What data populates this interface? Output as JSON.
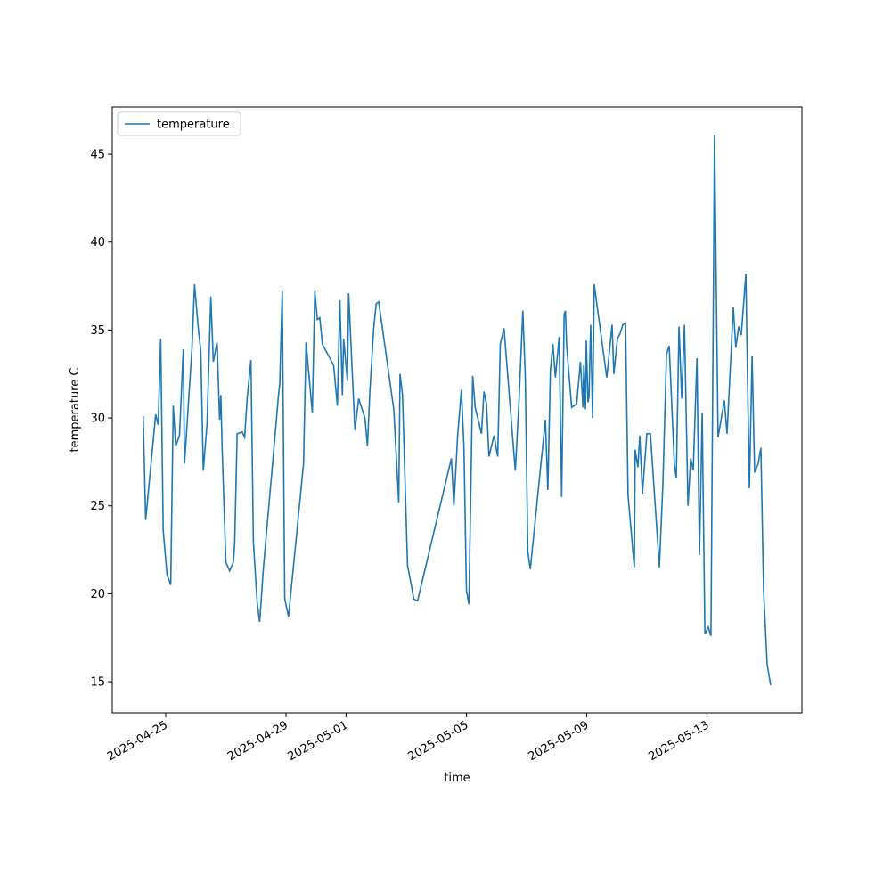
{
  "chart_data": {
    "type": "line",
    "xlabel": "time",
    "ylabel": "temperature C",
    "legend": "upper left",
    "xlim": [
      "2025-04-23T05:20",
      "2025-05-16T03:45"
    ],
    "xticks": [
      "2025-04-25",
      "2025-04-29",
      "2025-05-01",
      "2025-05-05",
      "2025-05-09",
      "2025-05-13"
    ],
    "ylim": [
      13.23,
      47.69
    ],
    "yticks": [
      15,
      20,
      25,
      30,
      35,
      40,
      45
    ],
    "x": [
      "2025-04-24T06:00",
      "2025-04-24T08:00",
      "2025-04-24T16:00",
      "2025-04-24T18:00",
      "2025-04-24T20:00",
      "2025-04-24T22:00",
      "2025-04-25T01:00",
      "2025-04-25T04:00",
      "2025-04-25T06:00",
      "2025-04-25T08:00",
      "2025-04-25T11:00",
      "2025-04-25T14:00",
      "2025-04-25T15:00",
      "2025-04-25T21:00",
      "2025-04-25T23:00",
      "2025-04-26T02:00",
      "2025-04-26T04:00",
      "2025-04-26T06:00",
      "2025-04-26T09:00",
      "2025-04-26T12:00",
      "2025-04-26T14:00",
      "2025-04-26T17:00",
      "2025-04-26T19:00",
      "2025-04-26T20:00",
      "2025-04-26T21:00",
      "2025-04-27T00:00",
      "2025-04-27T03:00",
      "2025-04-27T06:00",
      "2025-04-27T07:00",
      "2025-04-27T09:00",
      "2025-04-27T13:00",
      "2025-04-27T15:00",
      "2025-04-27T17:00",
      "2025-04-27T20:00",
      "2025-04-27T22:00",
      "2025-04-28T01:00",
      "2025-04-28T03:00",
      "2025-04-28T06:00",
      "2025-04-28T15:00",
      "2025-04-28T18:00",
      "2025-04-28T19:00",
      "2025-04-28T21:00",
      "2025-04-28T23:00",
      "2025-04-29T02:00",
      "2025-04-29T14:00",
      "2025-04-29T16:00",
      "2025-04-29T18:00",
      "2025-04-29T21:00",
      "2025-04-29T23:00",
      "2025-04-30T01:00",
      "2025-04-30T03:00",
      "2025-04-30T05:00",
      "2025-04-30T14:00",
      "2025-04-30T17:00",
      "2025-04-30T19:00",
      "2025-04-30T21:00",
      "2025-04-30T22:00",
      "2025-05-01T01:00",
      "2025-05-01T02:00",
      "2025-05-01T05:00",
      "2025-05-01T07:00",
      "2025-05-01T10:00",
      "2025-05-01T15:00",
      "2025-05-01T17:00",
      "2025-05-01T19:00",
      "2025-05-01T22:00",
      "2025-05-02T00:00",
      "2025-05-02T02:00",
      "2025-05-02T14:00",
      "2025-05-02T18:00",
      "2025-05-02T19:00",
      "2025-05-02T21:00",
      "2025-05-03T01:00",
      "2025-05-03T04:00",
      "2025-05-03T06:00",
      "2025-05-03T09:00",
      "2025-05-04T12:00",
      "2025-05-04T14:00",
      "2025-05-04T17:00",
      "2025-05-04T20:00",
      "2025-05-04T22:00",
      "2025-05-05T00:00",
      "2025-05-05T02:00",
      "2025-05-05T05:00",
      "2025-05-05T07:00",
      "2025-05-05T12:00",
      "2025-05-05T14:00",
      "2025-05-05T16:00",
      "2025-05-05T18:00",
      "2025-05-05T22:00",
      "2025-05-06T01:00",
      "2025-05-06T03:00",
      "2025-05-06T06:00",
      "2025-05-06T15:00",
      "2025-05-06T18:00",
      "2025-05-06T21:00",
      "2025-05-06T23:00",
      "2025-05-07T01:00",
      "2025-05-07T03:00",
      "2025-05-07T15:00",
      "2025-05-07T17:00",
      "2025-05-07T19:00",
      "2025-05-07T21:00",
      "2025-05-07T23:00",
      "2025-05-08T02:00",
      "2025-05-08T04:00",
      "2025-05-08T06:00",
      "2025-05-08T07:00",
      "2025-05-08T08:00",
      "2025-05-08T12:00",
      "2025-05-08T16:00",
      "2025-05-08T19:00",
      "2025-05-08T21:00",
      "2025-05-08T21:40",
      "2025-05-08T23:00",
      "2025-05-08T23:40",
      "2025-05-09T01:00",
      "2025-05-09T01:50",
      "2025-05-09T03:10",
      "2025-05-09T04:40",
      "2025-05-09T06:00",
      "2025-05-09T16:00",
      "2025-05-09T20:15",
      "2025-05-09T21:40",
      "2025-05-10T00:30",
      "2025-05-10T02:40",
      "2025-05-10T04:50",
      "2025-05-10T07:00",
      "2025-05-10T09:00",
      "2025-05-10T14:00",
      "2025-05-10T14:40",
      "2025-05-10T16:50",
      "2025-05-10T18:20",
      "2025-05-10T20:30",
      "2025-05-11T00:00",
      "2025-05-11T02:50",
      "2025-05-11T10:00",
      "2025-05-11T12:50",
      "2025-05-11T15:40",
      "2025-05-11T17:50",
      "2025-05-11T22:00",
      "2025-05-11T23:30",
      "2025-05-12T01:40",
      "2025-05-12T03:50",
      "2025-05-12T06:00",
      "2025-05-12T08:50",
      "2025-05-12T11:00",
      "2025-05-12T13:00",
      "2025-05-12T16:00",
      "2025-05-12T18:00",
      "2025-05-12T20:10",
      "2025-05-12T22:20",
      "2025-05-13T01:00",
      "2025-05-13T03:10",
      "2025-05-13T06:00",
      "2025-05-13T08:50",
      "2025-05-13T13:50",
      "2025-05-13T16:00",
      "2025-05-13T21:00",
      "2025-05-13T23:00",
      "2025-05-14T01:15",
      "2025-05-14T03:20",
      "2025-05-14T07:00",
      "2025-05-14T09:50",
      "2025-05-14T12:00",
      "2025-05-14T14:00",
      "2025-05-14T16:50",
      "2025-05-14T19:00",
      "2025-05-14T21:10",
      "2025-05-15T00:00",
      "2025-05-15T02:50"
    ],
    "series": [
      {
        "name": "temperature",
        "color": "#1f77b4",
        "values": [
          30.1,
          24.2,
          30.2,
          29.6,
          34.5,
          23.6,
          21.1,
          20.5,
          30.7,
          28.4,
          29.0,
          33.9,
          27.4,
          34.0,
          37.6,
          35.1,
          33.8,
          27.0,
          29.7,
          36.9,
          33.2,
          34.3,
          29.9,
          31.3,
          28.3,
          21.8,
          21.3,
          21.8,
          22.8,
          29.1,
          29.2,
          28.9,
          31.1,
          33.3,
          22.9,
          19.5,
          18.4,
          21.5,
          28.8,
          31.3,
          31.9,
          37.2,
          19.7,
          18.7,
          27.4,
          34.3,
          32.7,
          30.3,
          37.2,
          35.6,
          35.7,
          34.2,
          33.0,
          30.7,
          36.7,
          31.3,
          34.5,
          32.1,
          37.1,
          32.4,
          29.3,
          31.1,
          30.0,
          28.4,
          31.6,
          35.1,
          36.5,
          36.6,
          30.5,
          25.2,
          32.5,
          31.3,
          21.6,
          20.5,
          19.7,
          19.6,
          27.7,
          25.0,
          29.0,
          31.6,
          28.4,
          20.2,
          19.4,
          32.4,
          30.6,
          29.1,
          31.5,
          30.8,
          27.8,
          29.0,
          27.8,
          34.2,
          35.1,
          27.0,
          31.0,
          36.1,
          32.3,
          22.4,
          21.4,
          29.9,
          25.9,
          32.7,
          34.2,
          32.3,
          34.6,
          25.5,
          35.9,
          36.1,
          34.1,
          30.6,
          30.8,
          33.2,
          30.6,
          33.0,
          30.5,
          34.4,
          30.9,
          31.2,
          35.3,
          30.0,
          37.6,
          32.3,
          35.3,
          32.5,
          34.5,
          34.8,
          35.3,
          35.4,
          25.6,
          21.5,
          28.2,
          27.2,
          29.0,
          25.7,
          29.1,
          29.1,
          21.5,
          26.3,
          33.6,
          34.1,
          27.3,
          26.6,
          35.2,
          31.1,
          35.3,
          25.0,
          27.7,
          27.0,
          33.4,
          22.2,
          30.3,
          17.7,
          18.1,
          17.6,
          46.1,
          28.9,
          31.0,
          29.1,
          36.3,
          34.0,
          35.2,
          34.7,
          38.2,
          26.0,
          33.5,
          26.9,
          27.4,
          28.3,
          20.2,
          16.0,
          14.8
        ]
      }
    ]
  }
}
